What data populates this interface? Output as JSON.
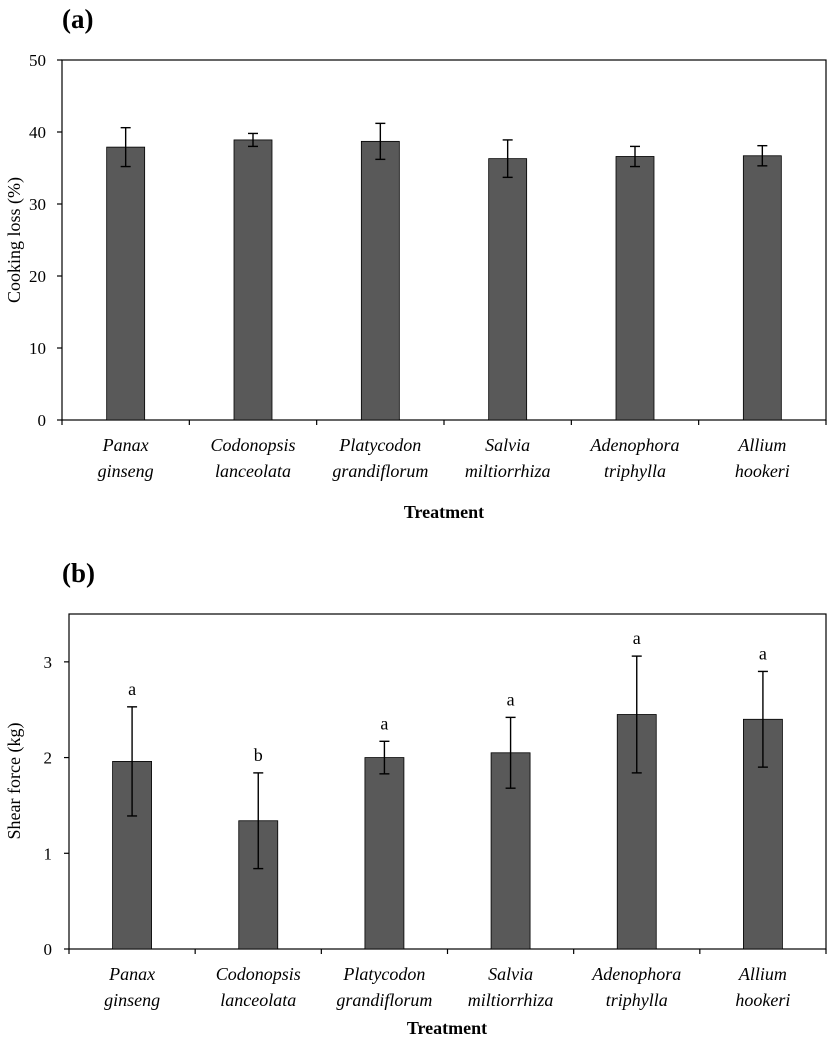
{
  "chart_data": [
    {
      "type": "bar",
      "panel_label": "(a)",
      "categories": [
        [
          "Panax",
          "ginseng"
        ],
        [
          "Codonopsis",
          "lanceolata"
        ],
        [
          "Platycodon",
          "grandiflorum"
        ],
        [
          "Salvia",
          "miltiorrhiza"
        ],
        [
          "Adenophora",
          "triphylla"
        ],
        [
          "Allium",
          "hookeri"
        ]
      ],
      "values": [
        37.9,
        38.9,
        38.7,
        36.3,
        36.6,
        36.7
      ],
      "errors": [
        2.7,
        0.9,
        2.5,
        2.6,
        1.4,
        1.4
      ],
      "significance": [],
      "xlabel": "Treatment",
      "ylabel": "Cooking loss (%)",
      "ylim": [
        0,
        50
      ],
      "yticks": [
        0,
        10,
        20,
        30,
        40,
        50
      ],
      "bar_color": "#595959",
      "grid": false
    },
    {
      "type": "bar",
      "panel_label": "(b)",
      "categories": [
        [
          "Panax",
          "ginseng"
        ],
        [
          "Codonopsis",
          "lanceolata"
        ],
        [
          "Platycodon",
          "grandiflorum"
        ],
        [
          "Salvia",
          "miltiorrhiza"
        ],
        [
          "Adenophora",
          "triphylla"
        ],
        [
          "Allium",
          "hookeri"
        ]
      ],
      "values": [
        1.96,
        1.34,
        2.0,
        2.05,
        2.45,
        2.4
      ],
      "errors": [
        0.57,
        0.5,
        0.17,
        0.37,
        0.61,
        0.5
      ],
      "significance": [
        "a",
        "b",
        "a",
        "a",
        "a",
        "a"
      ],
      "xlabel": "Treatment",
      "ylabel": "Shear force (kg)",
      "ylim": [
        0,
        3.5
      ],
      "yticks": [
        0,
        1,
        2,
        3
      ],
      "bar_color": "#595959",
      "grid": false
    }
  ]
}
